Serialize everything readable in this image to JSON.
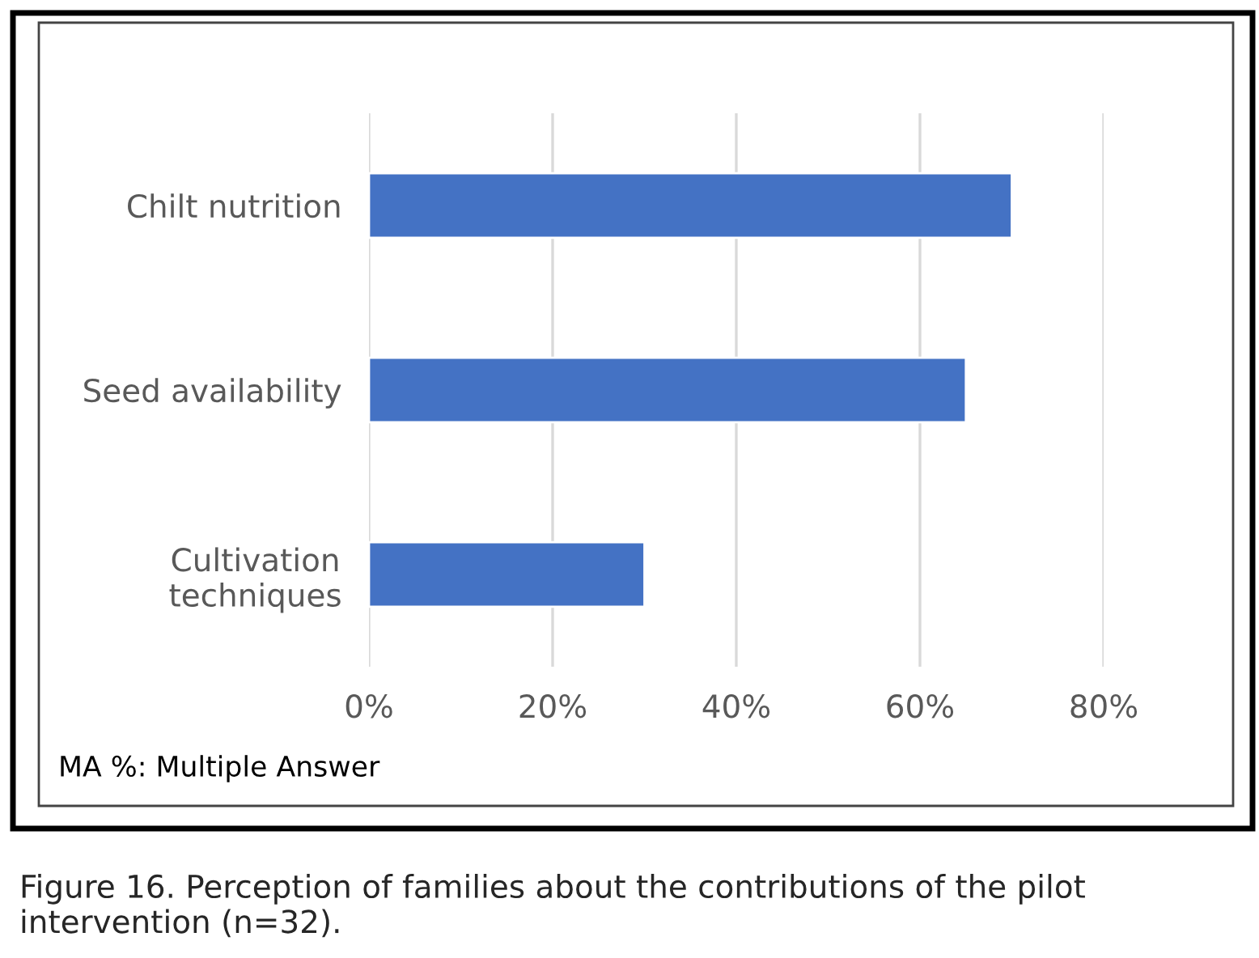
{
  "chart_data": {
    "type": "bar",
    "orientation": "horizontal",
    "categories": [
      "Chilt nutrition",
      "Seed availability",
      "Cultivation\ntechniques"
    ],
    "values": [
      70,
      65,
      30
    ],
    "color": "#4472c4",
    "xlim": [
      0,
      80
    ],
    "xticks": [
      {
        "value": 0,
        "label": "0%"
      },
      {
        "value": 20,
        "label": "20%"
      },
      {
        "value": 40,
        "label": "40%"
      },
      {
        "value": 60,
        "label": "60%"
      },
      {
        "value": 80,
        "label": "80%"
      }
    ],
    "grid": "x",
    "annotations": [
      "MA %: Multiple Answer",
      "Figure 16. Perception of families about the contributions of the pilot intervention (n=32)."
    ]
  }
}
